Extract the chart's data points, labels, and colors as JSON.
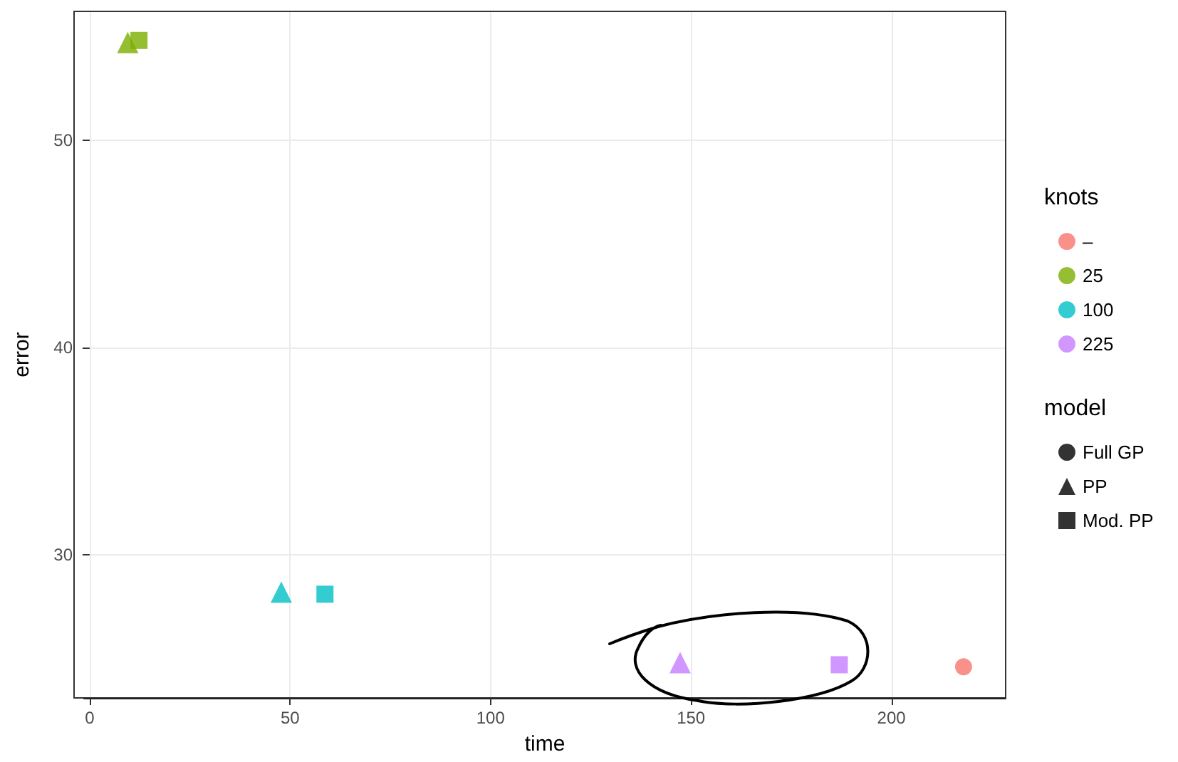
{
  "chart_data": {
    "type": "scatter",
    "xlabel": "time",
    "ylabel": "error",
    "xlim": [
      -1.4,
      228.5
    ],
    "ylim": [
      23.1,
      56.2
    ],
    "xticks": [
      0,
      50,
      100,
      150,
      200
    ],
    "yticks": [
      30,
      40,
      50
    ],
    "grid": true,
    "legend": "right",
    "legend_title": [
      "knots",
      "model"
    ],
    "series": [
      {
        "name": "–",
        "color": "#f8766d",
        "marker": "circle",
        "x": [
          218
        ],
        "values": [
          24.6
        ]
      },
      {
        "name": "25",
        "color": "#7cae00",
        "marker": "triangle",
        "x": [
          9.5
        ],
        "values": [
          54.7
        ]
      },
      {
        "color": "#7cae00",
        "marker": "square",
        "x": [
          12.3
        ],
        "values": [
          54.8
        ]
      },
      {
        "name": "100",
        "color": "#00bfc4",
        "marker": "triangle",
        "x": [
          47.8
        ],
        "values": [
          28.2
        ]
      },
      {
        "color": "#00bfc4",
        "marker": "square",
        "x": [
          58.7
        ],
        "values": [
          28.1
        ]
      },
      {
        "name": "225",
        "color": "#c77cff",
        "marker": "triangle",
        "x": [
          147.3
        ],
        "values": [
          24.8
        ]
      },
      {
        "color": "#c77cff",
        "marker": "square",
        "x": [
          187
        ],
        "values": [
          24.7
        ]
      },
      {
        "name": "Full GP",
        "color": "#000000",
        "marker": "circle"
      },
      {
        "name": "PP",
        "color": "#000000",
        "marker": "triangle"
      },
      {
        "name": "Mod. PP",
        "color": "#000000",
        "marker": "square"
      }
    ]
  }
}
